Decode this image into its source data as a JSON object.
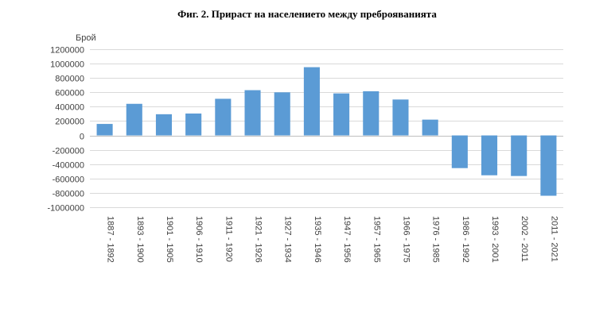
{
  "chart_data": {
    "type": "bar",
    "title": "Фиг. 2. Прираст на населението между преброяванията",
    "ylabel": "Брой",
    "xlabel": "",
    "ylim": [
      -1000000,
      1200000
    ],
    "ytick_step": 200000,
    "grid": true,
    "legend": "none",
    "bar_color": "#5b9bd5",
    "categories": [
      "1887 - 1892",
      "1893 - 1900",
      "1901 - 1905",
      "1906 - 1910",
      "1911 - 1920",
      "1921 - 1926",
      "1927 - 1934",
      "1935 - 1946",
      "1947 - 1956",
      "1957 - 1965",
      "1966 - 1975",
      "1976 - 1985",
      "1986 - 1992",
      "1993 - 2001",
      "2002 - 2011",
      "2011 - 2021"
    ],
    "values": [
      160000,
      440000,
      295000,
      305000,
      510000,
      630000,
      600000,
      950000,
      585000,
      615000,
      500000,
      220000,
      -455000,
      -555000,
      -565000,
      -840000
    ]
  }
}
